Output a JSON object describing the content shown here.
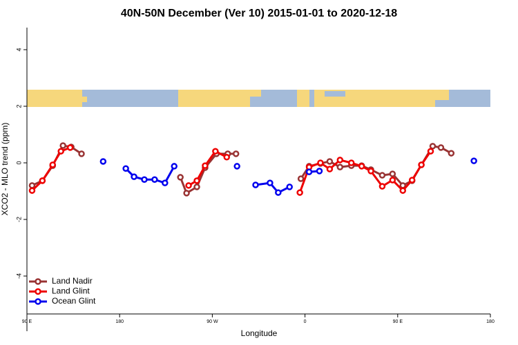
{
  "chart_data": {
    "type": "line",
    "title": "40N-50N December (Ver 10)   2015-01-01 to 2020-12-18",
    "x_label": "Longitude",
    "y_label": "XCO2 - MLO trend (ppm)",
    "xlim": [
      90,
      540
    ],
    "xticks": [
      {
        "value": 90,
        "label": "90 E"
      },
      {
        "value": 180,
        "label": "180"
      },
      {
        "value": 270,
        "label": "90 W"
      },
      {
        "value": 360,
        "label": "0"
      },
      {
        "value": 450,
        "label": "90 E"
      },
      {
        "value": 540,
        "label": "180"
      }
    ],
    "ylim": [
      -5.95,
      4.78
    ],
    "yticks": [
      4,
      2,
      0,
      -2,
      -4
    ],
    "legend": "bottom-left",
    "series": [
      {
        "name": "Land Nadir",
        "color": "#993333",
        "x": [
          95,
          105,
          115,
          125,
          133,
          143,
          190,
          239,
          245,
          255,
          263,
          274,
          285,
          293,
          325,
          356,
          364,
          375,
          384,
          394,
          405,
          415,
          424,
          435,
          445,
          455,
          464,
          473,
          484,
          492,
          502
        ],
        "values": [
          -0.8,
          -0.63,
          -0.1,
          0.61,
          0.56,
          0.32,
          null,
          -0.51,
          -1.07,
          -0.85,
          -0.17,
          0.32,
          0.32,
          0.32,
          null,
          -0.56,
          -0.12,
          -0.02,
          0.05,
          -0.15,
          -0.1,
          -0.1,
          -0.24,
          -0.44,
          -0.39,
          -0.8,
          -0.63,
          -0.07,
          0.59,
          0.54,
          0.34
        ]
      },
      {
        "name": "Land Glint",
        "color": "#ee0000",
        "x": [
          95,
          105,
          115,
          123,
          132,
          200,
          247,
          255,
          263,
          273,
          284,
          320,
          355,
          364,
          375,
          384,
          394,
          405,
          415,
          424,
          435,
          445,
          455,
          464,
          473,
          482
        ],
        "values": [
          -0.98,
          -0.63,
          -0.07,
          0.41,
          0.54,
          null,
          -0.8,
          -0.63,
          -0.1,
          0.41,
          0.2,
          null,
          -1.05,
          -0.15,
          0,
          -0.22,
          0.1,
          0,
          -0.12,
          -0.29,
          -0.83,
          -0.61,
          -0.98,
          -0.61,
          -0.07,
          0.41
        ]
      },
      {
        "name": "Ocean Glint",
        "color": "#0000ee",
        "x": [
          164,
          175,
          186,
          194,
          204,
          214,
          224,
          233,
          240,
          294,
          310,
          312,
          326,
          334,
          345,
          350,
          364,
          374,
          450,
          524
        ],
        "values": [
          0.05,
          null,
          -0.2,
          -0.49,
          -0.59,
          -0.59,
          -0.71,
          -0.12,
          null,
          -0.12,
          null,
          -0.78,
          -0.71,
          -1.05,
          -0.85,
          null,
          -0.32,
          -0.29,
          null,
          0.07
        ]
      }
    ]
  }
}
